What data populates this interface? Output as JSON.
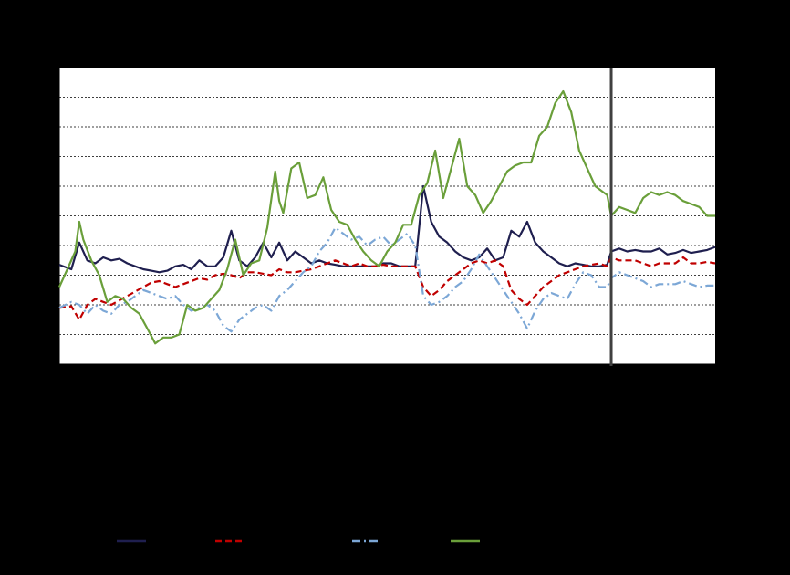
{
  "chart_data": {
    "type": "line",
    "title": "",
    "xlabel": "",
    "ylabel": "",
    "x_range": [
      0,
      164
    ],
    "y_range": [
      0,
      10
    ],
    "grid": true,
    "forecast_divider_x": 138,
    "legend_position": "bottom",
    "colors": {
      "background": "#000000",
      "plot_area": "#ffffff",
      "gridline": "#000000",
      "divider": "#404040"
    },
    "series": [
      {
        "style": "solid",
        "color": "#1f1f4f",
        "x": [
          0,
          3,
          5,
          7,
          9,
          11,
          13,
          15,
          17,
          19,
          21,
          23,
          25,
          27,
          29,
          31,
          33,
          35,
          37,
          39,
          41,
          43,
          45,
          47,
          49,
          51,
          53,
          55,
          57,
          59,
          61,
          63,
          65,
          67,
          69,
          71,
          73,
          75,
          77,
          79,
          81,
          83,
          85,
          87,
          89,
          91,
          93,
          95,
          97,
          99,
          101,
          103,
          105,
          107,
          109,
          111,
          113,
          115,
          117,
          119,
          121,
          123,
          125,
          127,
          129,
          131,
          133,
          135,
          137,
          138,
          140,
          142,
          144,
          146,
          148,
          150,
          152,
          154,
          156,
          158,
          160,
          162,
          164
        ],
        "y": [
          3.35,
          3.2,
          4.1,
          3.5,
          3.4,
          3.6,
          3.5,
          3.55,
          3.4,
          3.3,
          3.2,
          3.15,
          3.1,
          3.15,
          3.3,
          3.35,
          3.2,
          3.5,
          3.3,
          3.3,
          3.6,
          4.5,
          3.5,
          3.3,
          3.6,
          4.1,
          3.6,
          4.1,
          3.5,
          3.8,
          3.6,
          3.4,
          3.5,
          3.4,
          3.35,
          3.3,
          3.3,
          3.3,
          3.3,
          3.3,
          3.4,
          3.4,
          3.3,
          3.3,
          3.3,
          6.0,
          4.8,
          4.3,
          4.1,
          3.8,
          3.6,
          3.5,
          3.6,
          3.9,
          3.5,
          3.6,
          4.5,
          4.3,
          4.8,
          4.1,
          3.8,
          3.6,
          3.4,
          3.3,
          3.4,
          3.35,
          3.3,
          3.3,
          3.35,
          3.8,
          3.9,
          3.8,
          3.85,
          3.8,
          3.8,
          3.9,
          3.7,
          3.75,
          3.85,
          3.75,
          3.8,
          3.85,
          3.95
        ]
      },
      {
        "style": "dashed",
        "color": "#c00000",
        "x": [
          0,
          3,
          5,
          7,
          9,
          11,
          13,
          15,
          17,
          19,
          21,
          23,
          25,
          27,
          29,
          31,
          33,
          35,
          37,
          39,
          41,
          43,
          45,
          47,
          49,
          51,
          53,
          55,
          57,
          59,
          61,
          63,
          65,
          67,
          69,
          71,
          73,
          75,
          77,
          79,
          81,
          83,
          85,
          87,
          89,
          91,
          93,
          95,
          97,
          99,
          101,
          103,
          105,
          107,
          109,
          111,
          113,
          115,
          117,
          119,
          121,
          123,
          125,
          127,
          129,
          131,
          133,
          135,
          137,
          138,
          140,
          142,
          144,
          146,
          148,
          150,
          152,
          154,
          156,
          158,
          160,
          162,
          164
        ],
        "y": [
          1.9,
          1.95,
          1.5,
          2.0,
          2.2,
          2.1,
          2.0,
          2.15,
          2.3,
          2.45,
          2.6,
          2.75,
          2.8,
          2.7,
          2.6,
          2.7,
          2.8,
          2.9,
          2.85,
          3.0,
          3.05,
          3.0,
          2.9,
          3.1,
          3.1,
          3.05,
          3.0,
          3.2,
          3.1,
          3.1,
          3.15,
          3.2,
          3.3,
          3.4,
          3.5,
          3.4,
          3.3,
          3.4,
          3.3,
          3.3,
          3.35,
          3.3,
          3.3,
          3.3,
          3.3,
          2.6,
          2.3,
          2.5,
          2.8,
          3.0,
          3.2,
          3.4,
          3.5,
          3.4,
          3.5,
          3.3,
          2.5,
          2.2,
          2.0,
          2.3,
          2.6,
          2.8,
          3.0,
          3.1,
          3.2,
          3.3,
          3.35,
          3.4,
          3.3,
          3.6,
          3.5,
          3.5,
          3.5,
          3.4,
          3.3,
          3.4,
          3.4,
          3.4,
          3.6,
          3.4,
          3.4,
          3.45,
          3.4
        ]
      },
      {
        "style": "dash-dot",
        "color": "#7ca7d6",
        "x": [
          0,
          3,
          5,
          7,
          9,
          11,
          13,
          15,
          17,
          19,
          21,
          23,
          25,
          27,
          29,
          31,
          33,
          35,
          37,
          39,
          41,
          43,
          45,
          47,
          49,
          51,
          53,
          55,
          57,
          59,
          61,
          63,
          65,
          67,
          69,
          71,
          73,
          75,
          77,
          79,
          81,
          83,
          85,
          87,
          89,
          91,
          93,
          95,
          97,
          99,
          101,
          103,
          105,
          107,
          109,
          111,
          113,
          115,
          117,
          119,
          121,
          123,
          125,
          127,
          129,
          131,
          133,
          135,
          137,
          138,
          140,
          142,
          144,
          146,
          148,
          150,
          152,
          154,
          156,
          158,
          160,
          162,
          164
        ],
        "y": [
          1.9,
          2.1,
          2.0,
          1.7,
          2.0,
          1.8,
          1.7,
          2.0,
          2.1,
          2.3,
          2.5,
          2.4,
          2.3,
          2.2,
          2.3,
          2.0,
          1.8,
          1.9,
          2.0,
          1.8,
          1.3,
          1.1,
          1.5,
          1.7,
          1.9,
          2.0,
          1.8,
          2.3,
          2.5,
          2.8,
          3.1,
          3.3,
          3.8,
          4.1,
          4.6,
          4.4,
          4.2,
          4.3,
          4.0,
          4.2,
          4.3,
          4.0,
          4.2,
          4.4,
          4.0,
          2.3,
          2.0,
          2.1,
          2.3,
          2.6,
          2.8,
          3.2,
          3.7,
          3.3,
          2.9,
          2.5,
          2.1,
          1.7,
          1.2,
          1.8,
          2.2,
          2.4,
          2.3,
          2.2,
          2.7,
          3.1,
          3.0,
          2.6,
          2.6,
          2.9,
          3.1,
          3.0,
          2.9,
          2.8,
          2.6,
          2.7,
          2.7,
          2.7,
          2.8,
          2.7,
          2.6,
          2.65,
          2.65
        ]
      },
      {
        "style": "solid",
        "color": "#6a9f3a",
        "x": [
          0,
          2,
          4,
          5,
          6,
          8,
          10,
          12,
          14,
          16,
          18,
          20,
          22,
          24,
          26,
          28,
          30,
          32,
          34,
          36,
          38,
          40,
          42,
          44,
          46,
          48,
          50,
          52,
          54,
          55,
          56,
          58,
          60,
          62,
          64,
          66,
          68,
          70,
          72,
          74,
          76,
          78,
          80,
          82,
          84,
          86,
          88,
          90,
          92,
          94,
          96,
          98,
          100,
          102,
          104,
          106,
          108,
          110,
          112,
          114,
          116,
          118,
          120,
          122,
          124,
          126,
          128,
          130,
          132,
          134,
          136,
          137,
          138,
          140,
          142,
          144,
          146,
          148,
          150,
          152,
          154,
          156,
          158,
          160,
          162,
          164
        ],
        "y": [
          2.6,
          3.2,
          3.8,
          4.8,
          4.2,
          3.5,
          3.0,
          2.1,
          2.3,
          2.2,
          1.9,
          1.7,
          1.2,
          0.7,
          0.9,
          0.9,
          1.0,
          2.0,
          1.8,
          1.9,
          2.2,
          2.5,
          3.2,
          4.2,
          3.0,
          3.4,
          3.5,
          4.6,
          6.5,
          5.5,
          5.1,
          6.6,
          6.8,
          5.6,
          5.7,
          6.3,
          5.2,
          4.8,
          4.7,
          4.2,
          3.8,
          3.5,
          3.3,
          3.8,
          4.1,
          4.7,
          4.7,
          5.7,
          6.1,
          7.2,
          5.6,
          6.6,
          7.6,
          6.0,
          5.7,
          5.1,
          5.5,
          6.0,
          6.5,
          6.7,
          6.8,
          6.8,
          7.7,
          8.0,
          8.8,
          9.2,
          8.5,
          7.2,
          6.6,
          6.0,
          5.8,
          5.7,
          5.0,
          5.3,
          5.2,
          5.1,
          5.6,
          5.8,
          5.7,
          5.8,
          5.7,
          5.5,
          5.4,
          5.3,
          5.0,
          5.0
        ]
      }
    ]
  },
  "legend": {
    "entries": [
      {
        "style": "solid",
        "color": "#1f1f4f"
      },
      {
        "style": "dashed",
        "color": "#c00000"
      },
      {
        "style": "dash-dot",
        "color": "#7ca7d6"
      },
      {
        "style": "solid",
        "color": "#6a9f3a"
      }
    ]
  }
}
